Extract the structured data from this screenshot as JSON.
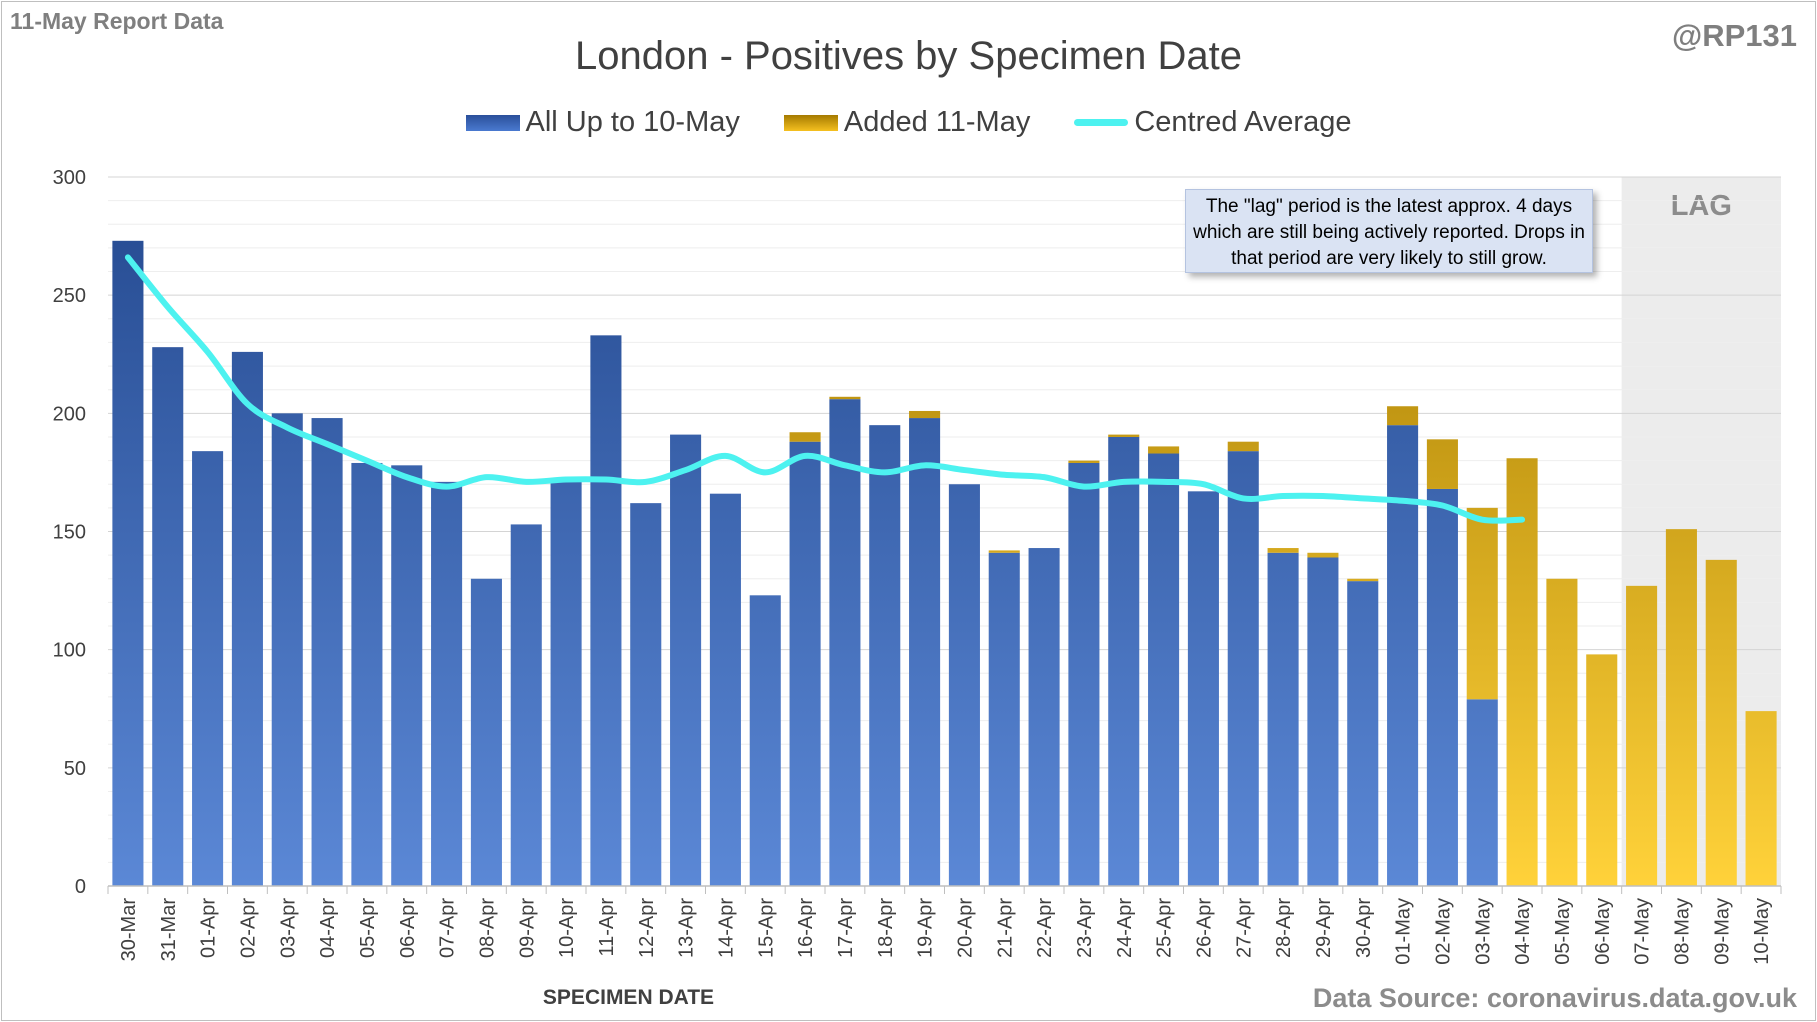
{
  "header": {
    "report_label": "11-May Report Data",
    "handle": "@RP131"
  },
  "chart_data": {
    "type": "bar",
    "title": "London - Positives by Specimen Date",
    "xlabel": "SPECIMEN DATE",
    "ylabel": "",
    "ylim": [
      0,
      300
    ],
    "yticks": [
      0,
      50,
      100,
      150,
      200,
      250,
      300
    ],
    "grid": true,
    "stacked": true,
    "legend_position": "top",
    "categories": [
      "30-Mar",
      "31-Mar",
      "01-Apr",
      "02-Apr",
      "03-Apr",
      "04-Apr",
      "05-Apr",
      "06-Apr",
      "07-Apr",
      "08-Apr",
      "09-Apr",
      "10-Apr",
      "11-Apr",
      "12-Apr",
      "13-Apr",
      "14-Apr",
      "15-Apr",
      "16-Apr",
      "17-Apr",
      "18-Apr",
      "19-Apr",
      "20-Apr",
      "21-Apr",
      "22-Apr",
      "23-Apr",
      "24-Apr",
      "25-Apr",
      "26-Apr",
      "27-Apr",
      "28-Apr",
      "29-Apr",
      "30-Apr",
      "01-May",
      "02-May",
      "03-May",
      "04-May",
      "05-May",
      "06-May",
      "07-May",
      "08-May",
      "09-May",
      "10-May"
    ],
    "series": [
      {
        "name": "All Up to 10-May",
        "kind": "bar",
        "color": "#2e5aa8",
        "values": [
          273,
          228,
          184,
          226,
          200,
          198,
          179,
          178,
          171,
          130,
          153,
          171,
          233,
          162,
          191,
          166,
          123,
          188,
          206,
          195,
          198,
          170,
          141,
          143,
          179,
          190,
          183,
          167,
          184,
          141,
          139,
          129,
          195,
          168,
          79,
          0,
          0,
          0,
          0,
          0,
          0,
          0
        ]
      },
      {
        "name": "Added 11-May",
        "kind": "bar",
        "color": "#e6b000",
        "values": [
          0,
          0,
          0,
          0,
          0,
          0,
          0,
          0,
          0,
          0,
          0,
          0,
          0,
          0,
          0,
          0,
          0,
          4,
          1,
          0,
          3,
          0,
          1,
          0,
          1,
          1,
          3,
          0,
          4,
          2,
          2,
          1,
          8,
          21,
          81,
          181,
          130,
          98,
          127,
          151,
          138,
          74
        ]
      },
      {
        "name": "Centred Average",
        "kind": "line",
        "color": "#4df2f0",
        "values": [
          266,
          245,
          226,
          204,
          194,
          187,
          180,
          173,
          169,
          173,
          171,
          172,
          172,
          171,
          176,
          182,
          175,
          182,
          178,
          175,
          178,
          176,
          174,
          173,
          169,
          171,
          171,
          170,
          164,
          165,
          165,
          164,
          163,
          161,
          155,
          155,
          null,
          null,
          null,
          null,
          null,
          null
        ]
      }
    ],
    "lag_region": {
      "label": "LAG",
      "from": "07-May",
      "to": "10-May"
    },
    "annotation": "The \"lag\" period is the latest approx. 4 days which are still being actively reported. Drops in that period are very likely to still grow."
  },
  "footer": {
    "source": "Data Source: coronavirus.data.gov.uk"
  },
  "colors": {
    "blue_top": "#24498f",
    "blue_bottom": "#5b88d6",
    "gold_top": "#a47a00",
    "gold_bottom": "#ffd23a",
    "average": "#4df2f0",
    "lag_fill": "#ececec"
  }
}
